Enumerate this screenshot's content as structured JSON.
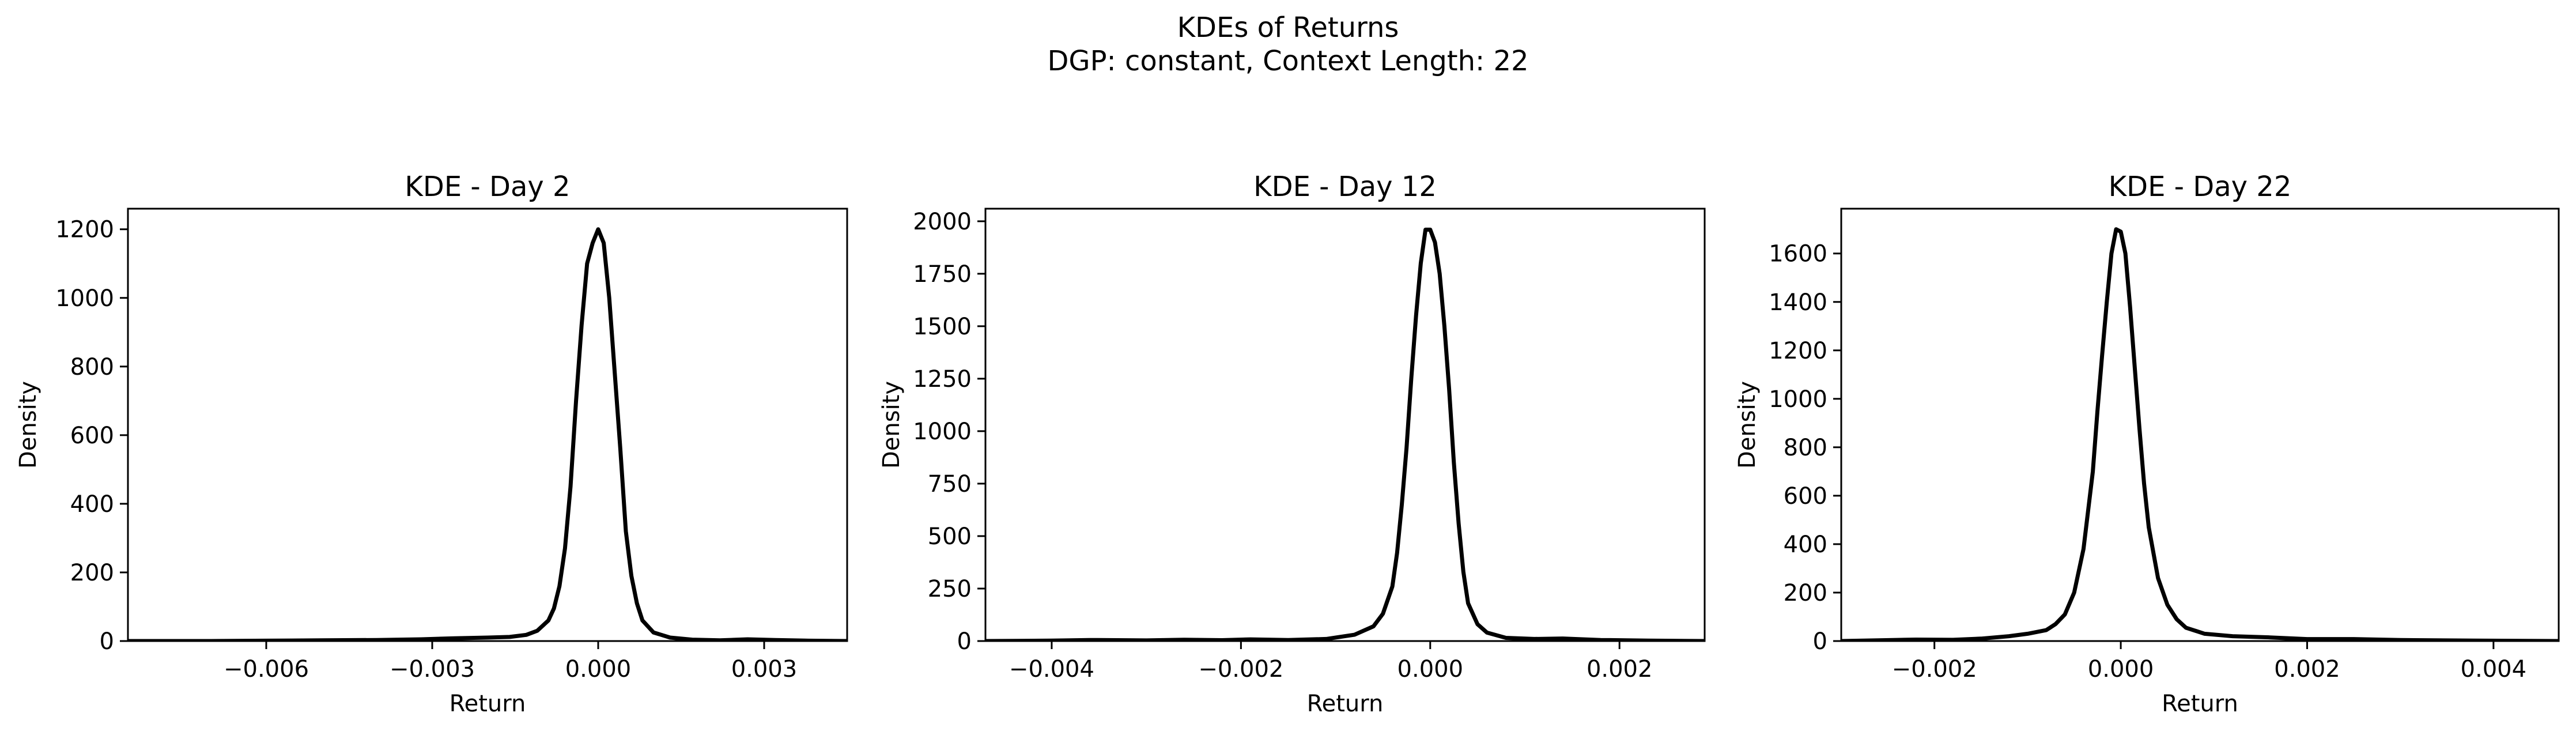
{
  "figure": {
    "title_line1": "KDEs of Returns",
    "title_line2": "DGP: constant, Context Length: 22"
  },
  "chart_data": [
    {
      "type": "line",
      "title": "KDE - Day 2",
      "xlabel": "Return",
      "ylabel": "Density",
      "xlim": [
        -0.0085,
        0.0045
      ],
      "ylim": [
        0,
        1260
      ],
      "xticks": [
        -0.006,
        -0.003,
        0.0,
        0.003
      ],
      "xtick_labels": [
        "−0.006",
        "−0.003",
        "0.000",
        "0.003"
      ],
      "yticks": [
        0,
        200,
        400,
        600,
        800,
        1000,
        1200
      ],
      "ytick_labels": [
        "0",
        "200",
        "400",
        "600",
        "800",
        "1000",
        "1200"
      ],
      "grid": false,
      "series": [
        {
          "color": "#000000",
          "x": [
            -0.0085,
            -0.007,
            -0.006,
            -0.005,
            -0.004,
            -0.0032,
            -0.0026,
            -0.002,
            -0.0016,
            -0.0013,
            -0.0011,
            -0.0009,
            -0.0008,
            -0.0007,
            -0.0006,
            -0.0005,
            -0.0004,
            -0.0003,
            -0.0002,
            -0.0001,
            0.0,
            0.0001,
            0.0002,
            0.0003,
            0.0004,
            0.0005,
            0.0006,
            0.0007,
            0.0008,
            0.001,
            0.0013,
            0.0017,
            0.0022,
            0.0027,
            0.0032,
            0.0038,
            0.0045
          ],
          "y": [
            0,
            0,
            1,
            2,
            3,
            5,
            8,
            10,
            12,
            18,
            30,
            60,
            95,
            160,
            270,
            450,
            700,
            920,
            1100,
            1160,
            1200,
            1160,
            1000,
            780,
            560,
            320,
            190,
            110,
            60,
            25,
            10,
            4,
            2,
            5,
            3,
            1,
            0
          ]
        }
      ]
    },
    {
      "type": "line",
      "title": "KDE - Day 12",
      "xlabel": "Return",
      "ylabel": "Density",
      "xlim": [
        -0.0047,
        0.0029
      ],
      "ylim": [
        0,
        2060
      ],
      "xticks": [
        -0.004,
        -0.002,
        0.0,
        0.002
      ],
      "xtick_labels": [
        "−0.004",
        "−0.002",
        "0.000",
        "0.002"
      ],
      "yticks": [
        0,
        250,
        500,
        750,
        1000,
        1250,
        1500,
        1750,
        2000
      ],
      "ytick_labels": [
        "0",
        "250",
        "500",
        "750",
        "1000",
        "1250",
        "1500",
        "1750",
        "2000"
      ],
      "grid": false,
      "series": [
        {
          "color": "#000000",
          "x": [
            -0.0047,
            -0.004,
            -0.0036,
            -0.003,
            -0.0026,
            -0.0022,
            -0.0019,
            -0.0015,
            -0.0011,
            -0.0008,
            -0.0006,
            -0.0005,
            -0.0004,
            -0.00035,
            -0.0003,
            -0.00025,
            -0.0002,
            -0.00015,
            -0.0001,
            -5e-05,
            0.0,
            5e-05,
            0.0001,
            0.00015,
            0.0002,
            0.00025,
            0.0003,
            0.00035,
            0.0004,
            0.0005,
            0.0006,
            0.0008,
            0.0011,
            0.0014,
            0.0018,
            0.0023,
            0.0029
          ],
          "y": [
            0,
            2,
            5,
            3,
            6,
            4,
            8,
            5,
            10,
            30,
            70,
            130,
            260,
            420,
            650,
            920,
            1250,
            1550,
            1800,
            1960,
            1960,
            1900,
            1750,
            1500,
            1200,
            850,
            560,
            330,
            180,
            80,
            40,
            15,
            10,
            12,
            5,
            2,
            0
          ]
        }
      ]
    },
    {
      "type": "line",
      "title": "KDE - Day 22",
      "xlabel": "Return",
      "ylabel": "Density",
      "xlim": [
        -0.003,
        0.0047
      ],
      "ylim": [
        0,
        1785
      ],
      "xticks": [
        -0.002,
        0.0,
        0.002,
        0.004
      ],
      "xtick_labels": [
        "−0.002",
        "0.000",
        "0.002",
        "0.004"
      ],
      "yticks": [
        0,
        200,
        400,
        600,
        800,
        1000,
        1200,
        1400,
        1600
      ],
      "ytick_labels": [
        "0",
        "200",
        "400",
        "600",
        "800",
        "1000",
        "1200",
        "1400",
        "1600"
      ],
      "grid": false,
      "series": [
        {
          "color": "#000000",
          "x": [
            -0.003,
            -0.0026,
            -0.0022,
            -0.0018,
            -0.0015,
            -0.0012,
            -0.001,
            -0.0008,
            -0.0007,
            -0.0006,
            -0.0005,
            -0.0004,
            -0.0003,
            -0.00025,
            -0.0002,
            -0.00015,
            -0.0001,
            -5e-05,
            0.0,
            5e-05,
            0.0001,
            0.00015,
            0.0002,
            0.00025,
            0.0003,
            0.0004,
            0.0005,
            0.0006,
            0.0007,
            0.0009,
            0.0012,
            0.0016,
            0.002,
            0.0025,
            0.003,
            0.0038,
            0.0047
          ],
          "y": [
            0,
            3,
            6,
            5,
            10,
            20,
            30,
            45,
            70,
            110,
            200,
            380,
            700,
            950,
            1180,
            1400,
            1600,
            1700,
            1690,
            1600,
            1380,
            1130,
            880,
            650,
            470,
            260,
            150,
            90,
            55,
            30,
            20,
            15,
            8,
            8,
            4,
            2,
            0
          ]
        }
      ]
    }
  ]
}
